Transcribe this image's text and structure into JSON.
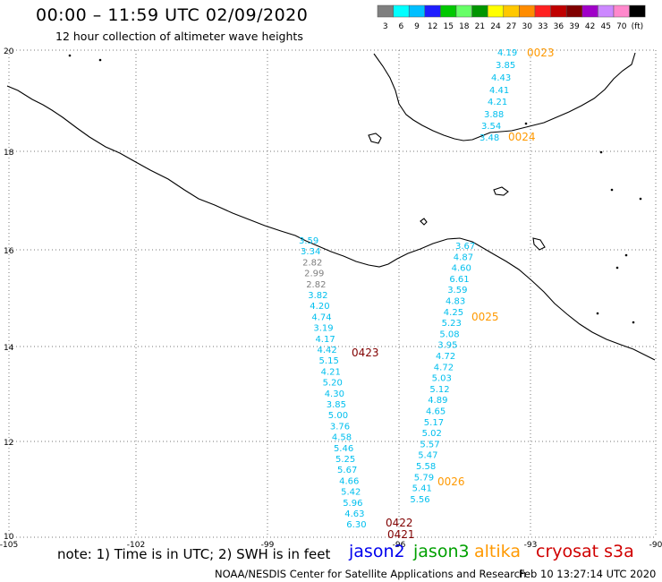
{
  "header": {
    "title": "00:00 – 11:59 UTC 02/09/2020",
    "subtitle": "12 hour collection of altimeter wave heights"
  },
  "legend": {
    "labels": [
      "3",
      "6",
      "9",
      "12",
      "15",
      "18",
      "21",
      "24",
      "27",
      "30",
      "33",
      "36",
      "39",
      "42",
      "45",
      "70",
      "(ft)"
    ],
    "colors": [
      "#7f7f7f",
      "#00ffff",
      "#00bfff",
      "#1e1eff",
      "#00c800",
      "#66ff66",
      "#009600",
      "#ffff00",
      "#ffc800",
      "#ff8c00",
      "#ff2020",
      "#c00000",
      "#800000",
      "#a000c8",
      "#cc88ff",
      "#ff88cc",
      "#000000"
    ]
  },
  "axes": {
    "lon_labels": [
      "-105",
      "-102",
      "-99",
      "-96",
      "-93",
      "-90"
    ],
    "lat_labels": [
      "20",
      "18",
      "16",
      "14",
      "12",
      "10"
    ]
  },
  "colors": {
    "swh_cyan": "#00bfee",
    "swh_gray": "#7f7f7f",
    "time_orange": "#ff9900",
    "time_darkred": "#800000",
    "jason2": "#0000ee",
    "jason3": "#00a000",
    "altika": "#ff9900",
    "cryosat": "#d00000"
  },
  "tracks": {
    "ne": {
      "time_top": "0023",
      "time_mid": "0024",
      "values": [
        "4.19",
        "3.85",
        "4.43",
        "4.41",
        "4.21",
        "3.88",
        "3.54",
        "3.48"
      ]
    },
    "west": {
      "values": [
        {
          "v": "3.59",
          "c": "cyan"
        },
        {
          "v": "3.34",
          "c": "cyan"
        },
        {
          "v": "2.82",
          "c": "gray"
        },
        {
          "v": "2.99",
          "c": "gray"
        },
        {
          "v": "2.82",
          "c": "gray"
        },
        {
          "v": "3.82",
          "c": "cyan"
        },
        {
          "v": "4.20",
          "c": "cyan"
        },
        {
          "v": "4.74",
          "c": "cyan"
        },
        {
          "v": "3.19",
          "c": "cyan"
        },
        {
          "v": "4.17",
          "c": "cyan"
        },
        {
          "v": "4.42",
          "c": "cyan"
        },
        {
          "v": "5.15",
          "c": "cyan"
        },
        {
          "v": "4.21",
          "c": "cyan"
        },
        {
          "v": "5.20",
          "c": "cyan"
        },
        {
          "v": "4.30",
          "c": "cyan"
        },
        {
          "v": "3.85",
          "c": "cyan"
        },
        {
          "v": "5.00",
          "c": "cyan"
        },
        {
          "v": "3.76",
          "c": "cyan"
        },
        {
          "v": "4.58",
          "c": "cyan"
        },
        {
          "v": "5.46",
          "c": "cyan"
        },
        {
          "v": "5.25",
          "c": "cyan"
        },
        {
          "v": "5.67",
          "c": "cyan"
        },
        {
          "v": "4.66",
          "c": "cyan"
        },
        {
          "v": "5.42",
          "c": "cyan"
        },
        {
          "v": "5.96",
          "c": "cyan"
        },
        {
          "v": "4.63",
          "c": "cyan"
        },
        {
          "v": "6.30",
          "c": "cyan"
        }
      ],
      "time_mid": "0423",
      "time_low": "0422",
      "time_bottom": "0421"
    },
    "east": {
      "values": [
        "3.67",
        "4.87",
        "4.60",
        "6.61",
        "3.59",
        "4.83",
        "4.25",
        "5.23",
        "5.08",
        "3.95",
        "4.72",
        "4.72",
        "5.03",
        "5.12",
        "4.89",
        "4.65",
        "5.17",
        "5.02",
        "5.57",
        "5.47",
        "5.58",
        "5.79",
        "5.41",
        "5.56"
      ],
      "time_mid": "0025",
      "time_low": "0026"
    }
  },
  "footer": {
    "note": "note: 1) Time is in UTC; 2) SWH is in feet",
    "satellites": [
      "jason2",
      "jason3",
      "altika",
      "cryosat s3a"
    ],
    "credit": "NOAA/NESDIS Center for Satellite Applications and Research",
    "generated": "Feb 10 13:27:14 UTC 2020"
  }
}
